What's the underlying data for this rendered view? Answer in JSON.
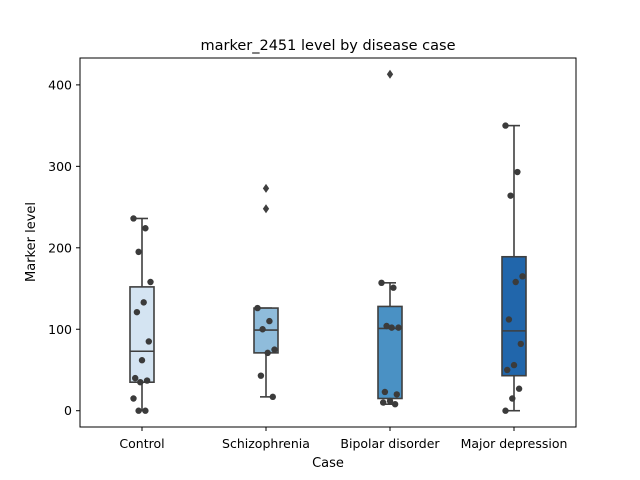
{
  "chart_data": {
    "type": "box",
    "title": "marker_2451 level by disease case",
    "xlabel": "Case",
    "ylabel": "Marker level",
    "categories": [
      "Control",
      "Schizophrenia",
      "Bipolar disorder",
      "Major depression"
    ],
    "ylim": [
      -20,
      433
    ],
    "yticks": [
      0,
      100,
      200,
      300,
      400
    ],
    "grid": false,
    "legend": "none",
    "colors": [
      "#d4e4f2",
      "#8fbcdb",
      "#4a91c4",
      "#2166ab"
    ],
    "edge_color": "#3f3f3f",
    "point_color": "#3b3b3b",
    "groups": [
      {
        "name": "Control",
        "whisker_low": 0,
        "q1": 35,
        "median": 73,
        "q3": 152,
        "whisker_high": 236,
        "outliers": [],
        "points": [
          236,
          224,
          195,
          158,
          133,
          121,
          85,
          62,
          40,
          37,
          35,
          15,
          0,
          0
        ]
      },
      {
        "name": "Schizophrenia",
        "whisker_low": 17,
        "q1": 71,
        "median": 99,
        "q3": 126,
        "whisker_high": 126,
        "outliers": [
          273,
          248
        ],
        "points": [
          126,
          110,
          100,
          75,
          71,
          43,
          17
        ]
      },
      {
        "name": "Bipolar disorder",
        "whisker_low": 8,
        "q1": 15,
        "median": 101,
        "q3": 128,
        "whisker_high": 157,
        "outliers": [
          413
        ],
        "points": [
          157,
          151,
          104,
          102,
          102,
          23,
          20,
          12,
          10,
          8
        ]
      },
      {
        "name": "Major depression",
        "whisker_low": 0,
        "q1": 43,
        "median": 98,
        "q3": 189,
        "whisker_high": 350,
        "outliers": [],
        "points": [
          350,
          293,
          264,
          165,
          158,
          112,
          82,
          56,
          50,
          27,
          15,
          0
        ]
      }
    ]
  }
}
